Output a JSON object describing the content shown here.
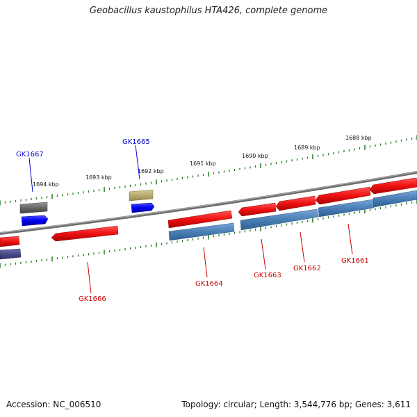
{
  "title": "Geobacillus kaustophilus HTA426, complete genome",
  "footer": {
    "accession": "Accession: NC_006510",
    "topology": "Topology: circular; Length: 3,544,776 bp; Genes: 3,611"
  },
  "colors": {
    "backbone": "#777777",
    "ticks": "#1f7a1f",
    "gene_red": "#ee1111",
    "gene_steelblue": "#4a7fb5",
    "gene_blue": "#0000ee",
    "gene_grey": "#666666",
    "gene_khaki": "#b8ad70",
    "gene_slate": "#4a4a8a",
    "label_blue": "#0000cc",
    "label_red": "#cc0000"
  },
  "scale_labels": [
    "1694 kbp",
    "1693 kbp",
    "1692 kbp",
    "1691 kbp",
    "1690 kbp",
    "1689 kbp",
    "1688 kbp"
  ],
  "gene_labels": [
    "GK1667",
    "GK1665",
    "GK1666",
    "GK1664",
    "GK1663",
    "GK1662",
    "GK1661"
  ]
}
